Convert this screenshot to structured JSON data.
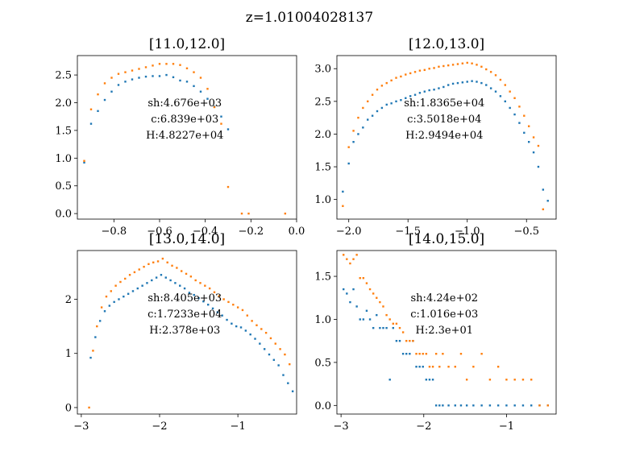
{
  "figure": {
    "suptitle": "z=1.01004028137"
  },
  "colors": {
    "series_blue": "#1f77b4",
    "series_orange": "#ff7f0e"
  },
  "chart_data": [
    {
      "type": "scatter",
      "title": "[11.0,12.0]",
      "xlim": [
        -0.96,
        0.0
      ],
      "ylim": [
        -0.1,
        2.85
      ],
      "xticks": [
        -0.8,
        -0.6,
        -0.4,
        -0.2,
        0.0
      ],
      "xtick_labels": [
        "−0.8",
        "−0.6",
        "−0.4",
        "−0.2",
        "0.0"
      ],
      "yticks": [
        0.0,
        0.5,
        1.0,
        1.5,
        2.0,
        2.5
      ],
      "ytick_labels": [
        "0.0",
        "0.5",
        "1.0",
        "1.5",
        "2.0",
        "2.5"
      ],
      "annotations": [
        "sh:4.676e+03",
        "c:6.839e+03",
        "H:4.8227e+04"
      ],
      "series": [
        {
          "color": "blue",
          "x": [
            -0.93,
            -0.9,
            -0.87,
            -0.84,
            -0.81,
            -0.78,
            -0.75,
            -0.72,
            -0.69,
            -0.66,
            -0.63,
            -0.6,
            -0.57,
            -0.54,
            -0.51,
            -0.48,
            -0.45,
            -0.42,
            -0.39,
            -0.36,
            -0.33,
            -0.3
          ],
          "y": [
            0.92,
            1.62,
            1.85,
            2.05,
            2.2,
            2.32,
            2.38,
            2.42,
            2.45,
            2.47,
            2.48,
            2.48,
            2.5,
            2.46,
            2.4,
            2.38,
            2.3,
            2.2,
            2.07,
            1.93,
            1.75,
            1.52
          ]
        },
        {
          "color": "orange",
          "x": [
            -0.93,
            -0.9,
            -0.87,
            -0.84,
            -0.81,
            -0.78,
            -0.75,
            -0.72,
            -0.69,
            -0.66,
            -0.63,
            -0.6,
            -0.57,
            -0.54,
            -0.51,
            -0.48,
            -0.45,
            -0.42,
            -0.39,
            -0.36,
            -0.33,
            -0.3,
            -0.24,
            -0.21,
            -0.05
          ],
          "y": [
            0.95,
            1.88,
            2.15,
            2.35,
            2.45,
            2.52,
            2.55,
            2.58,
            2.61,
            2.64,
            2.67,
            2.7,
            2.7,
            2.7,
            2.68,
            2.62,
            2.55,
            2.45,
            2.25,
            1.92,
            1.62,
            0.48,
            0.0,
            0.0,
            0.0
          ]
        }
      ]
    },
    {
      "type": "scatter",
      "title": "[12.0,13.0]",
      "xlim": [
        -2.1,
        -0.25
      ],
      "ylim": [
        0.7,
        3.2
      ],
      "xticks": [
        -2.0,
        -1.5,
        -1.0,
        -0.5
      ],
      "xtick_labels": [
        "−2.0",
        "−1.5",
        "−1.0",
        "−0.5"
      ],
      "yticks": [
        1.0,
        1.5,
        2.0,
        2.5,
        3.0
      ],
      "ytick_labels": [
        "1.0",
        "1.5",
        "2.0",
        "2.5",
        "3.0"
      ],
      "annotations": [
        "sh:1.8365e+04",
        "c:3.5018e+04",
        "H:2.9494e+04"
      ],
      "series": [
        {
          "color": "blue",
          "x": [
            -2.05,
            -2.0,
            -1.96,
            -1.92,
            -1.88,
            -1.84,
            -1.8,
            -1.76,
            -1.72,
            -1.68,
            -1.64,
            -1.6,
            -1.56,
            -1.52,
            -1.48,
            -1.44,
            -1.4,
            -1.36,
            -1.32,
            -1.28,
            -1.24,
            -1.2,
            -1.16,
            -1.12,
            -1.08,
            -1.04,
            -1.0,
            -0.96,
            -0.92,
            -0.88,
            -0.84,
            -0.8,
            -0.76,
            -0.72,
            -0.68,
            -0.64,
            -0.6,
            -0.56,
            -0.52,
            -0.48,
            -0.44,
            -0.4,
            -0.36,
            -0.32
          ],
          "y": [
            1.12,
            1.55,
            1.88,
            2.0,
            2.1,
            2.22,
            2.28,
            2.35,
            2.4,
            2.45,
            2.47,
            2.5,
            2.52,
            2.55,
            2.58,
            2.6,
            2.63,
            2.65,
            2.67,
            2.68,
            2.7,
            2.72,
            2.75,
            2.77,
            2.78,
            2.79,
            2.8,
            2.81,
            2.8,
            2.78,
            2.75,
            2.7,
            2.65,
            2.58,
            2.5,
            2.4,
            2.3,
            2.17,
            2.02,
            1.88,
            1.72,
            1.5,
            1.15,
            0.98
          ]
        },
        {
          "color": "orange",
          "x": [
            -2.05,
            -2.0,
            -1.96,
            -1.92,
            -1.88,
            -1.84,
            -1.8,
            -1.76,
            -1.72,
            -1.68,
            -1.64,
            -1.6,
            -1.56,
            -1.52,
            -1.48,
            -1.44,
            -1.4,
            -1.36,
            -1.32,
            -1.28,
            -1.24,
            -1.2,
            -1.16,
            -1.12,
            -1.08,
            -1.04,
            -1.0,
            -0.96,
            -0.92,
            -0.88,
            -0.84,
            -0.8,
            -0.76,
            -0.72,
            -0.68,
            -0.64,
            -0.6,
            -0.56,
            -0.52,
            -0.48,
            -0.44,
            -0.4,
            -0.36
          ],
          "y": [
            0.9,
            1.8,
            2.05,
            2.25,
            2.4,
            2.5,
            2.6,
            2.68,
            2.74,
            2.78,
            2.82,
            2.86,
            2.88,
            2.91,
            2.93,
            2.95,
            2.97,
            2.98,
            3.0,
            3.01,
            3.03,
            3.04,
            3.05,
            3.06,
            3.07,
            3.08,
            3.09,
            3.08,
            3.06,
            3.03,
            2.99,
            2.95,
            2.9,
            2.83,
            2.75,
            2.65,
            2.55,
            2.42,
            2.28,
            2.12,
            1.95,
            1.82,
            0.85
          ]
        }
      ]
    },
    {
      "type": "scatter",
      "title": "[13.0,14.0]",
      "xlim": [
        -3.05,
        -0.25
      ],
      "ylim": [
        -0.12,
        2.9
      ],
      "xticks": [
        -3,
        -2,
        -1
      ],
      "xtick_labels": [
        "−3",
        "−2",
        "−1"
      ],
      "yticks": [
        0,
        1,
        2
      ],
      "ytick_labels": [
        "0",
        "1",
        "2"
      ],
      "annotations": [
        "sh:8.405e+03",
        "c:1.7233e+04",
        "H:2.378e+03"
      ],
      "series": [
        {
          "color": "blue",
          "x": [
            -2.88,
            -2.82,
            -2.76,
            -2.7,
            -2.64,
            -2.58,
            -2.52,
            -2.46,
            -2.4,
            -2.34,
            -2.28,
            -2.22,
            -2.16,
            -2.1,
            -2.04,
            -1.98,
            -1.92,
            -1.86,
            -1.8,
            -1.74,
            -1.68,
            -1.62,
            -1.56,
            -1.5,
            -1.44,
            -1.38,
            -1.32,
            -1.26,
            -1.2,
            -1.14,
            -1.08,
            -1.02,
            -0.96,
            -0.9,
            -0.84,
            -0.78,
            -0.72,
            -0.66,
            -0.6,
            -0.54,
            -0.48,
            -0.42,
            -0.36,
            -0.3
          ],
          "y": [
            0.92,
            1.3,
            1.6,
            1.78,
            1.88,
            1.95,
            2.0,
            2.05,
            2.1,
            2.15,
            2.2,
            2.25,
            2.3,
            2.35,
            2.4,
            2.45,
            2.4,
            2.35,
            2.3,
            2.25,
            2.2,
            2.12,
            2.08,
            2.02,
            1.96,
            1.9,
            1.83,
            1.76,
            1.7,
            1.62,
            1.55,
            1.5,
            1.48,
            1.42,
            1.35,
            1.27,
            1.18,
            1.08,
            0.98,
            0.88,
            0.78,
            0.6,
            0.45,
            0.3
          ]
        },
        {
          "color": "orange",
          "x": [
            -2.9,
            -2.85,
            -2.8,
            -2.74,
            -2.68,
            -2.62,
            -2.56,
            -2.5,
            -2.44,
            -2.38,
            -2.32,
            -2.26,
            -2.2,
            -2.14,
            -2.08,
            -2.02,
            -1.96,
            -1.9,
            -1.84,
            -1.78,
            -1.72,
            -1.66,
            -1.6,
            -1.54,
            -1.48,
            -1.42,
            -1.36,
            -1.3,
            -1.24,
            -1.18,
            -1.12,
            -1.06,
            -1.0,
            -0.94,
            -0.88,
            -0.82,
            -0.76,
            -0.7,
            -0.64,
            -0.58,
            -0.52,
            -0.46,
            -0.4,
            -0.34
          ],
          "y": [
            0.0,
            1.05,
            1.5,
            1.85,
            2.05,
            2.15,
            2.25,
            2.32,
            2.38,
            2.45,
            2.5,
            2.55,
            2.6,
            2.65,
            2.68,
            2.7,
            2.75,
            2.68,
            2.62,
            2.58,
            2.52,
            2.47,
            2.42,
            2.35,
            2.3,
            2.25,
            2.2,
            2.13,
            2.06,
            2.0,
            1.95,
            1.9,
            1.85,
            1.8,
            1.7,
            1.6,
            1.52,
            1.45,
            1.38,
            1.28,
            1.18,
            1.08,
            0.98,
            0.8
          ]
        }
      ]
    },
    {
      "type": "scatter",
      "title": "[14.0,15.0]",
      "xlim": [
        -3.05,
        -0.4
      ],
      "ylim": [
        -0.1,
        1.8
      ],
      "xticks": [
        -3,
        -2,
        -1
      ],
      "xtick_labels": [
        "−3",
        "−2",
        "−1"
      ],
      "yticks": [
        0.0,
        0.5,
        1.0,
        1.5
      ],
      "ytick_labels": [
        "0.0",
        "0.5",
        "1.0",
        "1.5"
      ],
      "annotations": [
        "sh:4.24e+02",
        "c:1.016e+03",
        "H:2.3e+01"
      ],
      "series": [
        {
          "color": "blue",
          "x": [
            -2.97,
            -2.93,
            -2.89,
            -2.85,
            -2.81,
            -2.77,
            -2.73,
            -2.69,
            -2.65,
            -2.61,
            -2.57,
            -2.53,
            -2.49,
            -2.45,
            -2.41,
            -2.37,
            -2.33,
            -2.29,
            -2.25,
            -2.21,
            -2.17,
            -2.13,
            -2.09,
            -2.05,
            -2.01,
            -1.97,
            -1.93,
            -1.89,
            -1.85,
            -1.81,
            -1.77,
            -1.7,
            -1.62,
            -1.55,
            -1.48,
            -1.4,
            -1.3,
            -1.2,
            -1.1,
            -1.0,
            -0.9,
            -0.8,
            -0.7,
            -0.6,
            -0.5
          ],
          "y": [
            1.35,
            1.3,
            1.2,
            1.35,
            1.15,
            1.0,
            1.0,
            1.1,
            1.0,
            0.9,
            1.05,
            0.9,
            0.9,
            0.9,
            0.3,
            0.9,
            0.75,
            0.75,
            0.6,
            0.6,
            0.6,
            0.75,
            0.45,
            0.45,
            0.45,
            0.3,
            0.3,
            0.3,
            0.0,
            0.0,
            0.0,
            0.0,
            0.0,
            0.0,
            0.0,
            0.0,
            0.0,
            0.0,
            0.0,
            0.0,
            0.0,
            0.0,
            0.0,
            0.0,
            0.0
          ]
        },
        {
          "color": "orange",
          "x": [
            -2.97,
            -2.93,
            -2.89,
            -2.85,
            -2.81,
            -2.77,
            -2.73,
            -2.69,
            -2.65,
            -2.61,
            -2.57,
            -2.53,
            -2.49,
            -2.45,
            -2.41,
            -2.37,
            -2.33,
            -2.29,
            -2.25,
            -2.21,
            -2.17,
            -2.13,
            -2.09,
            -2.05,
            -2.01,
            -1.97,
            -1.93,
            -1.89,
            -1.85,
            -1.81,
            -1.77,
            -1.7,
            -1.62,
            -1.55,
            -1.48,
            -1.4,
            -1.3,
            -1.2,
            -1.1,
            -1.0,
            -0.9,
            -0.8,
            -0.7,
            -0.6,
            -0.5
          ],
          "y": [
            1.75,
            1.7,
            1.65,
            1.7,
            1.75,
            1.48,
            1.48,
            1.42,
            1.35,
            1.3,
            1.25,
            1.2,
            1.15,
            1.05,
            1.0,
            0.95,
            0.95,
            0.9,
            0.85,
            0.75,
            0.75,
            0.75,
            0.6,
            0.6,
            0.6,
            0.6,
            0.45,
            0.45,
            0.6,
            0.45,
            0.6,
            0.45,
            0.45,
            0.6,
            0.3,
            0.45,
            0.6,
            0.3,
            0.45,
            0.3,
            0.3,
            0.3,
            0.3,
            0.0,
            0.0
          ]
        }
      ]
    }
  ]
}
